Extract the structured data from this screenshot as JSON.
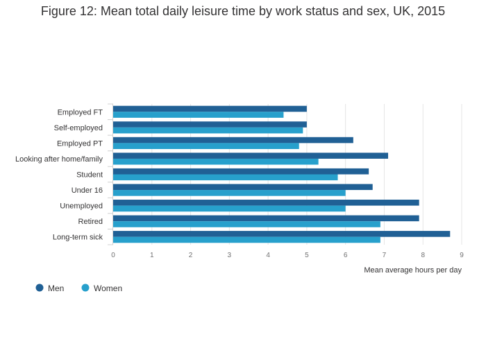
{
  "chart_data": {
    "type": "bar",
    "orientation": "horizontal",
    "title": "Figure 12: Mean total daily leisure time by work status and sex, UK, 2015",
    "xlabel": "Mean average hours per day",
    "ylabel": "",
    "xlim": [
      0,
      9
    ],
    "xticks": [
      0,
      1,
      2,
      3,
      4,
      5,
      6,
      7,
      8,
      9
    ],
    "grid": "vertical",
    "legend": "bottom-left",
    "categories": [
      "Employed FT",
      "Self-employed",
      "Employed PT",
      "Looking after home/family",
      "Student",
      "Under 16",
      "Unemployed",
      "Retired",
      "Long-term sick"
    ],
    "series": [
      {
        "name": "Men",
        "color": "#206095",
        "values": [
          5.0,
          5.0,
          6.2,
          7.1,
          6.6,
          6.7,
          7.9,
          7.9,
          8.7
        ]
      },
      {
        "name": "Women",
        "color": "#27a0cc",
        "values": [
          4.4,
          4.9,
          4.8,
          5.3,
          5.8,
          6.0,
          6.0,
          6.9,
          6.9
        ]
      }
    ]
  }
}
